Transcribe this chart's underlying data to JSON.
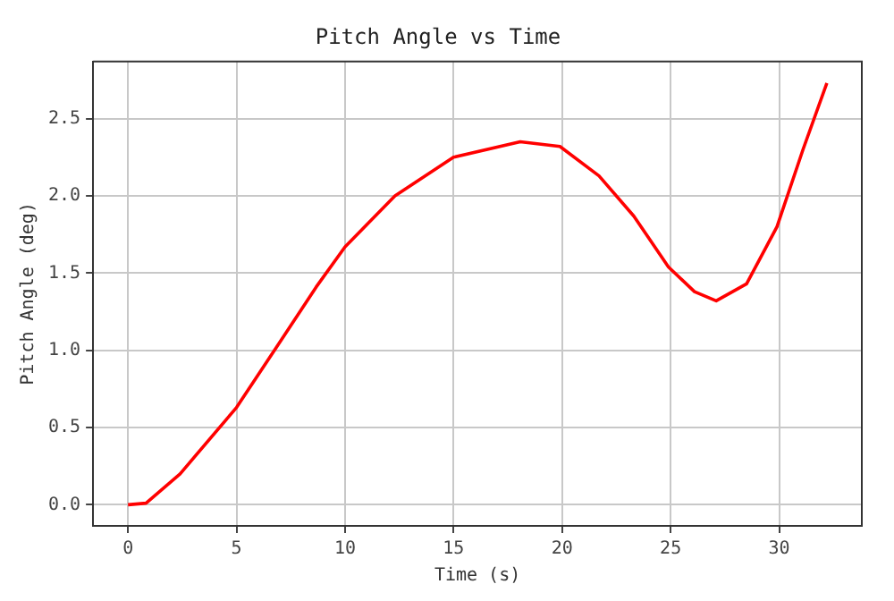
{
  "chart_data": {
    "type": "line",
    "title": "Pitch Angle vs Time",
    "xlabel": "Time (s)",
    "ylabel": "Pitch Angle (deg)",
    "x": [
      0,
      0.83,
      2.4,
      5,
      6.84,
      8.67,
      10,
      12.3,
      15,
      18.07,
      19.9,
      21.7,
      23.3,
      24.9,
      26.1,
      27.1,
      28.5,
      29.9,
      31.1,
      32.2
    ],
    "series": [
      {
        "color": "#ff0000",
        "values": [
          0,
          0.01,
          0.2,
          0.63,
          1.02,
          1.41,
          1.67,
          2.0,
          2.25,
          2.35,
          2.32,
          2.13,
          1.87,
          1.54,
          1.38,
          1.32,
          1.43,
          1.8,
          2.3,
          2.73
        ]
      }
    ],
    "xlim": [
      -1.61,
      33.81
    ],
    "xticks": [
      0,
      5,
      10,
      15,
      20,
      25,
      30
    ],
    "ylim": [
      -0.137,
      2.87
    ],
    "yticks": [
      {
        "value": 0,
        "label": "0.0"
      },
      {
        "value": 0.5,
        "label": "0.5"
      },
      {
        "value": 1,
        "label": "1.0"
      },
      {
        "value": 1.5,
        "label": "1.5"
      },
      {
        "value": 2,
        "label": "2.0"
      },
      {
        "value": 2.5,
        "label": "2.5"
      }
    ],
    "grid": true,
    "marker": "none",
    "line_style": "solid"
  }
}
